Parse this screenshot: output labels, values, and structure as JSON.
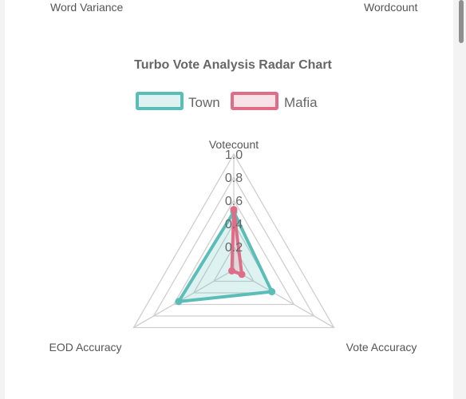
{
  "top_labels": {
    "left": "Word Variance",
    "right": "Wordcount"
  },
  "colors": {
    "town": "#5bbdb7",
    "town_fill": "rgba(91,189,183,0.2)",
    "mafia": "#e06d88",
    "mafia_fill": "rgba(224,109,136,0.2)",
    "grid": "#cfcfcf",
    "text": "#666666",
    "title": "#666666"
  },
  "chart_data": {
    "type": "radar",
    "title": "Turbo Vote Analysis Radar Chart",
    "axes": [
      "Votecount",
      "Vote Accuracy",
      "EOD Accuracy"
    ],
    "r_ticks": [
      "0.2",
      "0.4",
      "0.6",
      "0.8",
      "1.0"
    ],
    "r_range": [
      0,
      1
    ],
    "legend_position": "top",
    "series": [
      {
        "name": "Town",
        "values": [
          0.5,
          0.38,
          0.55
        ]
      },
      {
        "name": "Mafia",
        "values": [
          0.52,
          0.08,
          0.02
        ]
      }
    ]
  }
}
